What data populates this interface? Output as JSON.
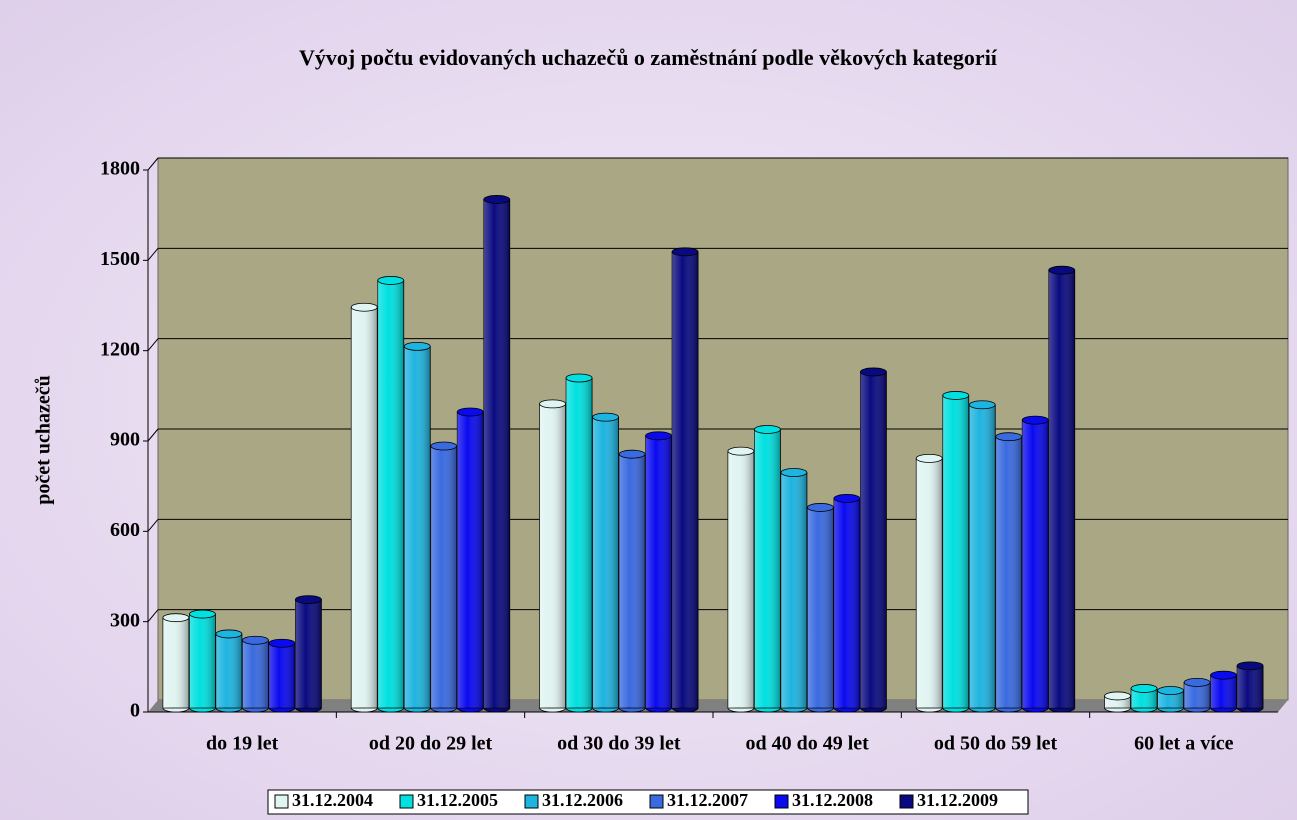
{
  "chart_data": {
    "type": "bar3d",
    "title": "Vývoj počtu  evidovaných uchazečů o zaměstnání podle věkových kategorií",
    "y_label": "počet uchazečů",
    "categories": [
      "do 19 let",
      "od 20 do 29 let",
      "od 30 do 39 let",
      "od 40 do 49 let",
      "od 50 do 59 let",
      "60 let a více"
    ],
    "series": [
      {
        "name": "31.12.2004",
        "color": "#e0f4f2",
        "values": [
          300,
          1331,
          1010,
          853,
          829,
          40
        ]
      },
      {
        "name": "31.12.2005",
        "color": "#00e0e0",
        "values": [
          312,
          1420,
          1096,
          925,
          1038,
          65
        ]
      },
      {
        "name": "31.12.2006",
        "color": "#1eb4e0",
        "values": [
          246,
          1201,
          966,
          782,
          1007,
          58
        ]
      },
      {
        "name": "31.12.2007",
        "color": "#3a6ae0",
        "values": [
          225,
          870,
          843,
          666,
          901,
          85
        ]
      },
      {
        "name": "31.12.2008",
        "color": "#0a0af0",
        "values": [
          215,
          983,
          904,
          696,
          956,
          109
        ]
      },
      {
        "name": "31.12.2009",
        "color": "#0a0a80",
        "values": [
          360,
          1689,
          1515,
          1116,
          1454,
          140
        ]
      }
    ],
    "ylim": [
      0,
      1800
    ],
    "yticks": [
      0,
      300,
      600,
      900,
      1200,
      1500,
      1800
    ],
    "grid": true,
    "legend": "bottom"
  }
}
